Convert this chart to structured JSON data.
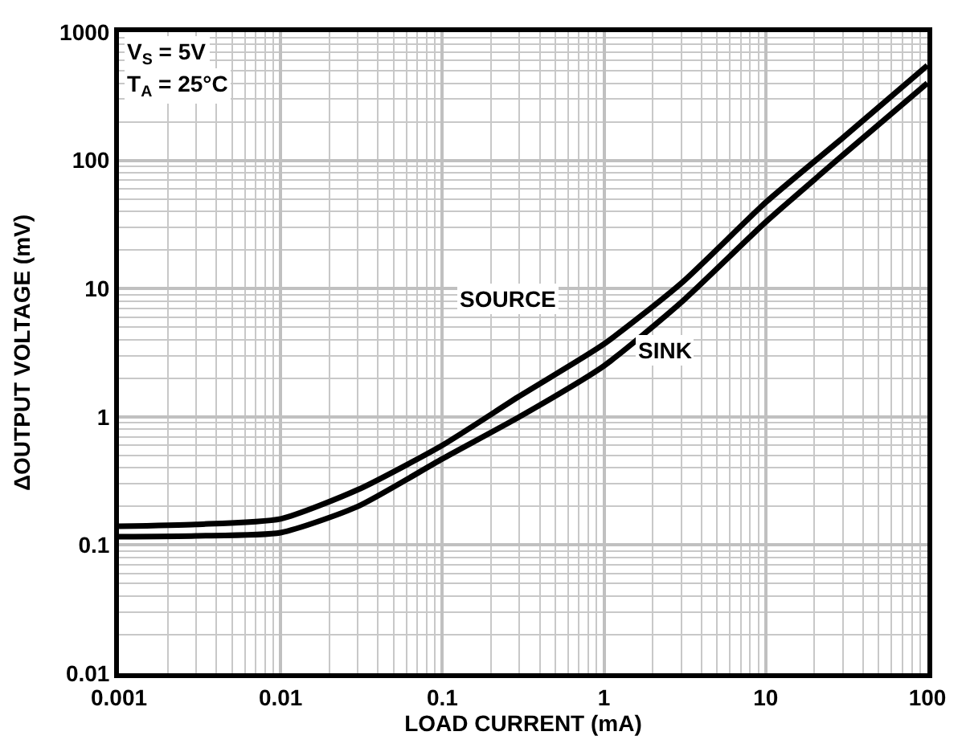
{
  "chart_data": {
    "type": "line",
    "xlabel": "LOAD CURRENT (mA)",
    "ylabel": "ΔOUTPUT VOLTAGE (mV)",
    "log": "xy",
    "grid": true,
    "legend": false,
    "marker": "none",
    "line_style": "solid",
    "x": [
      0.001,
      0.003,
      0.01,
      0.03,
      0.1,
      0.3,
      1,
      3,
      10,
      30,
      100
    ],
    "series": [
      {
        "name": "SOURCE",
        "color": "#000000",
        "values": [
          0.14,
          0.145,
          0.16,
          0.27,
          0.6,
          1.45,
          3.7,
          11,
          47,
          150,
          550
        ]
      },
      {
        "name": "SINK",
        "color": "#000000",
        "values": [
          0.116,
          0.118,
          0.125,
          0.2,
          0.47,
          1.0,
          2.5,
          7.8,
          33,
          110,
          400
        ]
      }
    ],
    "xlim": [
      0.001,
      100
    ],
    "xticks": [
      0.001,
      0.01,
      0.1,
      1,
      10,
      100
    ],
    "ylim": [
      0.01,
      1000
    ],
    "yticks": [
      0.01,
      0.1,
      1,
      10,
      100,
      1000
    ],
    "annotations": [
      "V$_{S}$ = 5V",
      "T$_{A}$ = 25°C"
    ]
  }
}
